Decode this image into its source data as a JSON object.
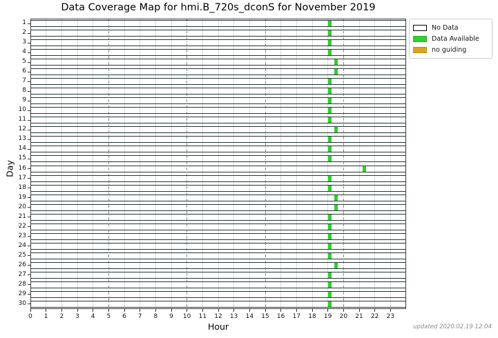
{
  "title": "Data Coverage Map for hmi.B_720s_dconS for November 2019",
  "axes": {
    "xlabel": "Hour",
    "ylabel": "Day"
  },
  "footer": {
    "updated": "updated 2020.02.19 12:04"
  },
  "legend": {
    "items": [
      {
        "label": "No Data",
        "color": "#ffffff",
        "edge": "#000000"
      },
      {
        "label": "Data Available",
        "color": "#32cd32",
        "edge": "#2db32d"
      },
      {
        "label": "no guiding",
        "color": "#d9a520",
        "edge": "#bd8f14"
      }
    ]
  },
  "chart_data": {
    "type": "heatmap",
    "subtype": "daily-coverage-timeline",
    "title": "Data Coverage Map for hmi.B_720s_dconS for November 2019",
    "xlabel": "Hour",
    "ylabel": "Day",
    "xlim": [
      0,
      24
    ],
    "x_tick_labels": [
      "0",
      "1",
      "2",
      "3",
      "4",
      "5",
      "6",
      "7",
      "8",
      "9",
      "10",
      "11",
      "12",
      "13",
      "14",
      "15",
      "16",
      "17",
      "18",
      "19",
      "20",
      "21",
      "22",
      "23"
    ],
    "day_labels": [
      "1",
      "2",
      "3",
      "4",
      "5",
      "6",
      "7",
      "8",
      "9",
      "10",
      "11",
      "12",
      "13",
      "14",
      "15",
      "16",
      "17",
      "18",
      "19",
      "20",
      "21",
      "22",
      "23",
      "24",
      "25",
      "26",
      "27",
      "28",
      "29",
      "30"
    ],
    "grid": {
      "minor_every_hour": true,
      "dash_dot_hours": [
        5,
        10,
        15,
        20
      ]
    },
    "row_default_status": "No Data",
    "status_colors": {
      "No Data": "#ffffff",
      "Data Available": "#32cd32",
      "no guiding": "#d9a520"
    },
    "segments": [
      {
        "day": 1,
        "start_hour": 19.0,
        "end_hour": 19.25,
        "status": "Data Available"
      },
      {
        "day": 2,
        "start_hour": 19.0,
        "end_hour": 19.25,
        "status": "Data Available"
      },
      {
        "day": 3,
        "start_hour": 19.0,
        "end_hour": 19.25,
        "status": "Data Available"
      },
      {
        "day": 4,
        "start_hour": 19.0,
        "end_hour": 19.25,
        "status": "Data Available"
      },
      {
        "day": 5,
        "start_hour": 19.4,
        "end_hour": 19.65,
        "status": "Data Available"
      },
      {
        "day": 6,
        "start_hour": 19.4,
        "end_hour": 19.65,
        "status": "Data Available"
      },
      {
        "day": 7,
        "start_hour": 19.0,
        "end_hour": 19.25,
        "status": "Data Available"
      },
      {
        "day": 8,
        "start_hour": 19.0,
        "end_hour": 19.25,
        "status": "Data Available"
      },
      {
        "day": 9,
        "start_hour": 19.0,
        "end_hour": 19.25,
        "status": "Data Available"
      },
      {
        "day": 10,
        "start_hour": 19.0,
        "end_hour": 19.25,
        "status": "Data Available"
      },
      {
        "day": 11,
        "start_hour": 19.0,
        "end_hour": 19.25,
        "status": "Data Available"
      },
      {
        "day": 12,
        "start_hour": 19.4,
        "end_hour": 19.65,
        "status": "Data Available"
      },
      {
        "day": 13,
        "start_hour": 19.0,
        "end_hour": 19.25,
        "status": "Data Available"
      },
      {
        "day": 14,
        "start_hour": 19.0,
        "end_hour": 19.25,
        "status": "Data Available"
      },
      {
        "day": 15,
        "start_hour": 19.0,
        "end_hour": 19.25,
        "status": "Data Available"
      },
      {
        "day": 16,
        "start_hour": 21.2,
        "end_hour": 21.45,
        "status": "Data Available"
      },
      {
        "day": 17,
        "start_hour": 19.0,
        "end_hour": 19.25,
        "status": "Data Available"
      },
      {
        "day": 18,
        "start_hour": 19.0,
        "end_hour": 19.25,
        "status": "Data Available"
      },
      {
        "day": 19,
        "start_hour": 19.4,
        "end_hour": 19.65,
        "status": "Data Available"
      },
      {
        "day": 20,
        "start_hour": 19.4,
        "end_hour": 19.65,
        "status": "Data Available"
      },
      {
        "day": 21,
        "start_hour": 19.0,
        "end_hour": 19.25,
        "status": "Data Available"
      },
      {
        "day": 22,
        "start_hour": 19.0,
        "end_hour": 19.25,
        "status": "Data Available"
      },
      {
        "day": 23,
        "start_hour": 19.0,
        "end_hour": 19.25,
        "status": "Data Available"
      },
      {
        "day": 24,
        "start_hour": 19.0,
        "end_hour": 19.25,
        "status": "Data Available"
      },
      {
        "day": 25,
        "start_hour": 19.0,
        "end_hour": 19.25,
        "status": "Data Available"
      },
      {
        "day": 26,
        "start_hour": 19.4,
        "end_hour": 19.65,
        "status": "Data Available"
      },
      {
        "day": 27,
        "start_hour": 19.0,
        "end_hour": 19.25,
        "status": "Data Available"
      },
      {
        "day": 28,
        "start_hour": 19.0,
        "end_hour": 19.25,
        "status": "Data Available"
      },
      {
        "day": 29,
        "start_hour": 19.0,
        "end_hour": 19.25,
        "status": "Data Available"
      },
      {
        "day": 30,
        "start_hour": 19.0,
        "end_hour": 19.25,
        "status": "Data Available"
      }
    ]
  }
}
